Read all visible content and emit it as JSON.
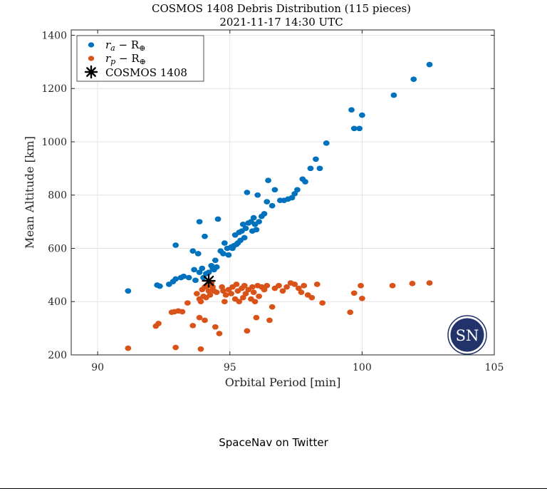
{
  "chart_data": {
    "type": "scatter",
    "title": "COSMOS 1408 Debris Distribution (115 pieces)",
    "subtitle": "2021-11-17 14:30 UTC",
    "xlabel": "Orbital Period [min]",
    "ylabel": "Mean Altitude [km]",
    "xlim": [
      89,
      105
    ],
    "ylim": [
      200,
      1420
    ],
    "xticks": [
      90,
      95,
      100,
      105
    ],
    "yticks": [
      200,
      400,
      600,
      800,
      1000,
      1200,
      1400
    ],
    "grid": true,
    "legend_position": "top-left",
    "series": [
      {
        "name_main": "r",
        "name_sub": "a",
        "name_rest": " − R",
        "name_rest_sub": "⊕",
        "color": "#0072BD",
        "marker": "dot",
        "points": [
          [
            91.15,
            440
          ],
          [
            92.25,
            462
          ],
          [
            92.35,
            458
          ],
          [
            92.7,
            465
          ],
          [
            92.85,
            475
          ],
          [
            92.95,
            485
          ],
          [
            92.95,
            612
          ],
          [
            93.15,
            490
          ],
          [
            93.25,
            495
          ],
          [
            93.45,
            490
          ],
          [
            93.6,
            590
          ],
          [
            93.65,
            520
          ],
          [
            93.7,
            480
          ],
          [
            93.8,
            580
          ],
          [
            93.85,
            700
          ],
          [
            93.85,
            510
          ],
          [
            93.95,
            525
          ],
          [
            94.0,
            490
          ],
          [
            94.05,
            645
          ],
          [
            94.1,
            505
          ],
          [
            94.2,
            510
          ],
          [
            94.3,
            535
          ],
          [
            94.35,
            525
          ],
          [
            94.4,
            520
          ],
          [
            94.45,
            555
          ],
          [
            94.5,
            530
          ],
          [
            94.55,
            710
          ],
          [
            94.65,
            590
          ],
          [
            94.75,
            580
          ],
          [
            94.8,
            620
          ],
          [
            94.9,
            600
          ],
          [
            94.95,
            575
          ],
          [
            95.05,
            605
          ],
          [
            95.1,
            600
          ],
          [
            95.15,
            610
          ],
          [
            95.2,
            650
          ],
          [
            95.25,
            615
          ],
          [
            95.3,
            620
          ],
          [
            95.35,
            660
          ],
          [
            95.4,
            630
          ],
          [
            95.45,
            665
          ],
          [
            95.5,
            690
          ],
          [
            95.55,
            640
          ],
          [
            95.6,
            675
          ],
          [
            95.65,
            810
          ],
          [
            95.7,
            695
          ],
          [
            95.8,
            700
          ],
          [
            95.85,
            665
          ],
          [
            95.9,
            715
          ],
          [
            95.95,
            690
          ],
          [
            96.0,
            670
          ],
          [
            96.05,
            800
          ],
          [
            96.1,
            700
          ],
          [
            96.2,
            720
          ],
          [
            96.3,
            730
          ],
          [
            96.4,
            775
          ],
          [
            96.45,
            855
          ],
          [
            96.6,
            760
          ],
          [
            96.7,
            820
          ],
          [
            96.9,
            780
          ],
          [
            97.05,
            780
          ],
          [
            97.2,
            785
          ],
          [
            97.35,
            790
          ],
          [
            97.45,
            805
          ],
          [
            97.55,
            820
          ],
          [
            97.75,
            860
          ],
          [
            97.85,
            850
          ],
          [
            98.05,
            900
          ],
          [
            98.25,
            935
          ],
          [
            98.4,
            900
          ],
          [
            98.65,
            995
          ],
          [
            99.6,
            1120
          ],
          [
            99.7,
            1050
          ],
          [
            99.9,
            1050
          ],
          [
            100.0,
            1100
          ],
          [
            101.2,
            1175
          ],
          [
            101.95,
            1235
          ],
          [
            102.55,
            1290
          ]
        ]
      },
      {
        "name_main": "r",
        "name_sub": "p",
        "name_rest": " − R",
        "name_rest_sub": "⊕",
        "color": "#D95319",
        "marker": "dot",
        "points": [
          [
            91.15,
            225
          ],
          [
            92.2,
            308
          ],
          [
            92.3,
            318
          ],
          [
            92.8,
            360
          ],
          [
            92.9,
            362
          ],
          [
            92.95,
            228
          ],
          [
            93.05,
            365
          ],
          [
            93.2,
            362
          ],
          [
            93.4,
            395
          ],
          [
            93.6,
            310
          ],
          [
            93.75,
            430
          ],
          [
            93.85,
            410
          ],
          [
            93.85,
            340
          ],
          [
            93.9,
            400
          ],
          [
            93.9,
            222
          ],
          [
            93.95,
            445
          ],
          [
            94.0,
            420
          ],
          [
            94.05,
            455
          ],
          [
            94.05,
            330
          ],
          [
            94.1,
            415
          ],
          [
            94.15,
            460
          ],
          [
            94.2,
            440
          ],
          [
            94.25,
            425
          ],
          [
            94.3,
            470
          ],
          [
            94.35,
            455
          ],
          [
            94.4,
            440
          ],
          [
            94.45,
            305
          ],
          [
            94.5,
            435
          ],
          [
            94.6,
            280
          ],
          [
            94.7,
            455
          ],
          [
            94.75,
            440
          ],
          [
            94.8,
            400
          ],
          [
            94.85,
            425
          ],
          [
            94.95,
            445
          ],
          [
            95.05,
            430
          ],
          [
            95.1,
            455
          ],
          [
            95.2,
            410
          ],
          [
            95.25,
            465
          ],
          [
            95.3,
            440
          ],
          [
            95.35,
            400
          ],
          [
            95.45,
            450
          ],
          [
            95.5,
            415
          ],
          [
            95.55,
            460
          ],
          [
            95.6,
            430
          ],
          [
            95.65,
            290
          ],
          [
            95.7,
            445
          ],
          [
            95.8,
            410
          ],
          [
            95.85,
            455
          ],
          [
            95.9,
            435
          ],
          [
            95.95,
            400
          ],
          [
            96.0,
            340
          ],
          [
            96.05,
            460
          ],
          [
            96.1,
            420
          ],
          [
            96.2,
            455
          ],
          [
            96.3,
            445
          ],
          [
            96.4,
            460
          ],
          [
            96.5,
            330
          ],
          [
            96.6,
            380
          ],
          [
            96.7,
            450
          ],
          [
            96.85,
            460
          ],
          [
            97.0,
            440
          ],
          [
            97.15,
            455
          ],
          [
            97.3,
            470
          ],
          [
            97.45,
            465
          ],
          [
            97.6,
            450
          ],
          [
            97.7,
            435
          ],
          [
            97.8,
            460
          ],
          [
            97.95,
            425
          ],
          [
            98.1,
            415
          ],
          [
            98.3,
            465
          ],
          [
            98.5,
            395
          ],
          [
            99.55,
            360
          ],
          [
            99.7,
            432
          ],
          [
            99.95,
            460
          ],
          [
            100.0,
            412
          ],
          [
            101.15,
            460
          ],
          [
            101.9,
            468
          ],
          [
            102.55,
            470
          ]
        ]
      }
    ],
    "highlight": {
      "label": "COSMOS 1408",
      "marker": "asterisk",
      "color": "#000000",
      "point": [
        94.2,
        478
      ]
    },
    "logo_text": "SN",
    "logo_color": "#22336B"
  },
  "credit": "SpaceNav on Twitter"
}
